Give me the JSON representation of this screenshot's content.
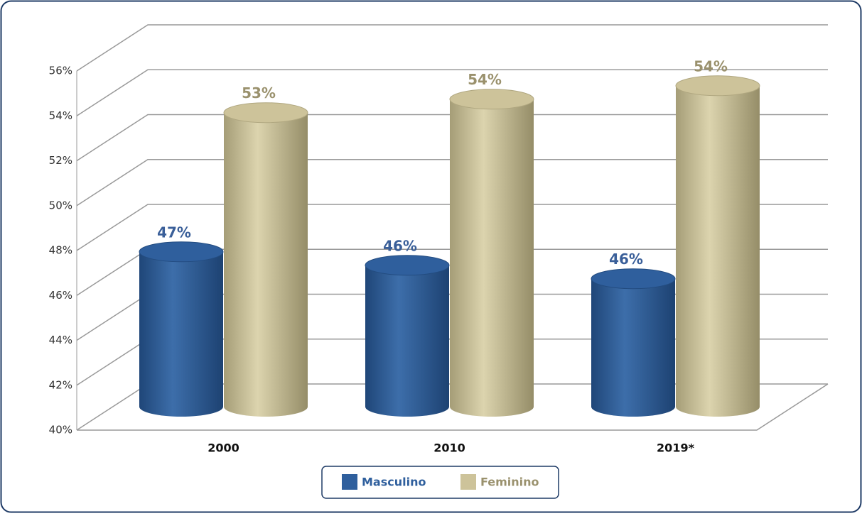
{
  "chart_data": {
    "type": "bar3d",
    "categories": [
      "2000",
      "2010",
      "2019*"
    ],
    "series": [
      {
        "name": "Masculino",
        "color": "#2f5f9d",
        "values": [
          46.9,
          46.3,
          45.7
        ],
        "value_labels": [
          "47%",
          "46%",
          "46%"
        ]
      },
      {
        "name": "Feminino",
        "color": "#cdc39a",
        "values": [
          53.1,
          53.7,
          54.3
        ],
        "value_labels": [
          "53%",
          "54%",
          "54%"
        ]
      }
    ],
    "ylim": [
      40,
      56
    ],
    "yticks": [
      {
        "value": 40,
        "label": "40%"
      },
      {
        "value": 42,
        "label": "42%"
      },
      {
        "value": 44,
        "label": "44%"
      },
      {
        "value": 46,
        "label": "46%"
      },
      {
        "value": 48,
        "label": "48%"
      },
      {
        "value": 50,
        "label": "50%"
      },
      {
        "value": 52,
        "label": "52%"
      },
      {
        "value": 54,
        "label": "54%"
      },
      {
        "value": 56,
        "label": "56%"
      }
    ],
    "grid": true
  }
}
